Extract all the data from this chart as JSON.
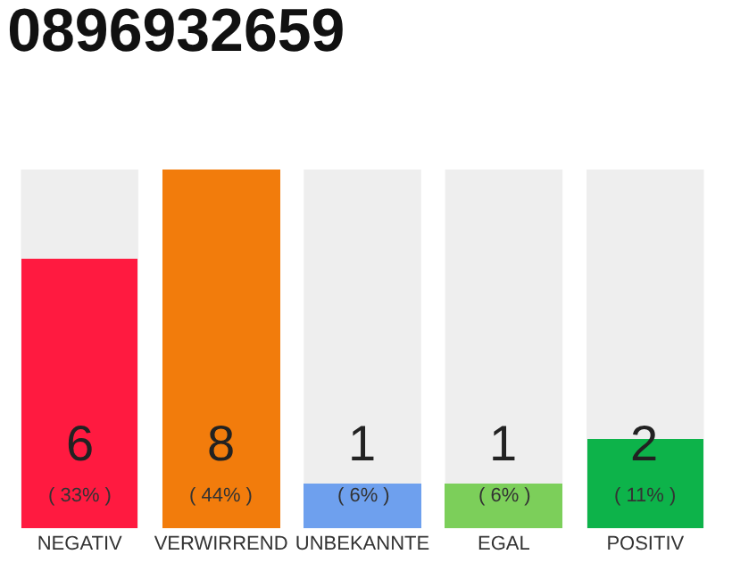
{
  "chart_data": {
    "type": "bar",
    "title": "0896932659",
    "categories": [
      "NEGATIV",
      "VERWIRREND",
      "UNBEKANNTE",
      "EGAL",
      "POSITIV"
    ],
    "values": [
      6,
      8,
      1,
      1,
      2
    ],
    "colors": [
      "#ff1a40",
      "#f27c0c",
      "#6ea0ee",
      "#7ccf5a",
      "#0db34a"
    ],
    "ylim": [
      0,
      8
    ],
    "tick_labels": "x",
    "data_labels": true,
    "annotations": [
      "( 33% )",
      "( 44% )",
      "( 6% )",
      "( 6% )",
      "( 11% )"
    ]
  }
}
